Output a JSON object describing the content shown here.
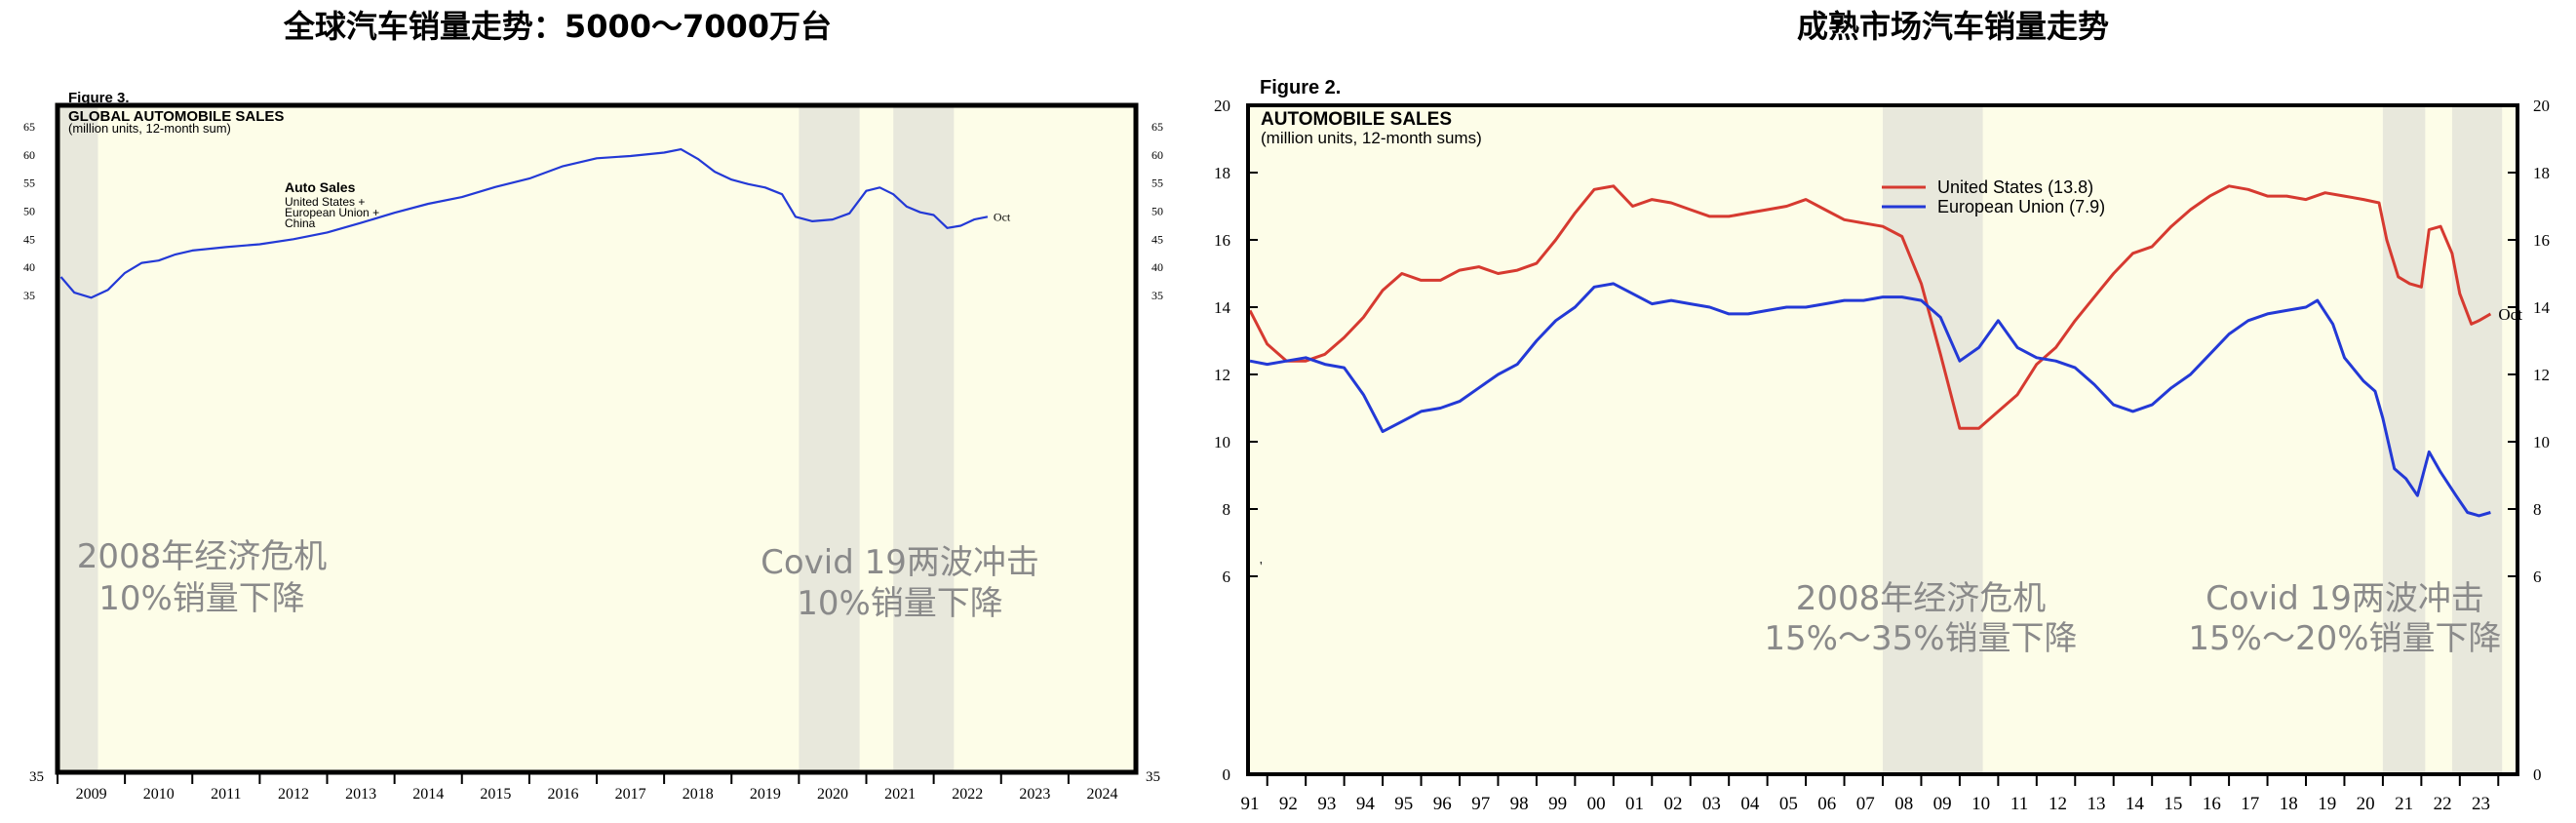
{
  "colors": {
    "plot_bg": "#fdfde8",
    "recession_band": "#e8e8dc",
    "blue": "#2339d6",
    "red": "#d63a30",
    "annotation": "#8a8a8a"
  },
  "chart_data": [
    {
      "type": "line",
      "title": "全球汽车销量走势：5000～7000万台",
      "figure_label": "Figure 3.",
      "panel_title": "GLOBAL AUTOMOBILE SALES",
      "panel_subtitle": "(million units, 12-month sum)",
      "legend_title": "Auto Sales",
      "legend_lines": [
        "United States +",
        "European Union +",
        "China"
      ],
      "ylim": [
        35,
        65
      ],
      "y_ticks_left": [
        "65",
        "60",
        "55",
        "50",
        "45",
        "40",
        "35"
      ],
      "y_ticks_right": [
        "65",
        "60",
        "55",
        "50",
        "45",
        "40",
        "35"
      ],
      "y_bottom_label_left": "35",
      "y_bottom_label_right": "35",
      "xlim": [
        2009,
        2025
      ],
      "x_tick_labels": [
        "2009",
        "2010",
        "2011",
        "2012",
        "2013",
        "2014",
        "2015",
        "2016",
        "2017",
        "2018",
        "2019",
        "2020",
        "2021",
        "2022",
        "2023",
        "2024"
      ],
      "shaded_periods": [
        [
          2009.0,
          2009.6
        ],
        [
          2020.0,
          2020.9
        ],
        [
          2021.4,
          2022.3
        ]
      ],
      "series": [
        {
          "name": "Auto Sales: United States + European Union + China",
          "end_label": "Oct",
          "x": [
            2009.05,
            2009.25,
            2009.5,
            2009.75,
            2010.0,
            2010.25,
            2010.5,
            2010.75,
            2011.0,
            2011.5,
            2012.0,
            2012.5,
            2013.0,
            2013.5,
            2014.0,
            2014.5,
            2015.0,
            2015.5,
            2016.0,
            2016.5,
            2017.0,
            2017.5,
            2018.0,
            2018.25,
            2018.5,
            2018.75,
            2019.0,
            2019.25,
            2019.5,
            2019.75,
            2019.95,
            2020.2,
            2020.5,
            2020.75,
            2021.0,
            2021.2,
            2021.4,
            2021.6,
            2021.8,
            2022.0,
            2022.2,
            2022.4,
            2022.6,
            2022.8
          ],
          "values": [
            38.3,
            35.5,
            34.6,
            36.0,
            39.0,
            40.8,
            41.2,
            42.3,
            43.0,
            43.6,
            44.1,
            45.0,
            46.2,
            47.9,
            49.7,
            51.3,
            52.5,
            54.3,
            55.8,
            58.0,
            59.4,
            59.8,
            60.4,
            61.0,
            59.3,
            57.0,
            55.6,
            54.8,
            54.2,
            53.0,
            49.0,
            48.2,
            48.5,
            49.6,
            53.6,
            54.2,
            53.0,
            50.8,
            49.8,
            49.3,
            47.0,
            47.4,
            48.5,
            49.0
          ]
        }
      ],
      "annotations": [
        {
          "lines": [
            "2008年经济危机",
            "10%销量下降"
          ]
        },
        {
          "lines": [
            "Covid 19两波冲击",
            "10%销量下降"
          ]
        }
      ]
    },
    {
      "type": "line",
      "title": "成熟市场汽车销量走势",
      "figure_label": "Figure 2.",
      "panel_title": "AUTOMOBILE SALES",
      "panel_subtitle": "(million units, 12-month sums)",
      "ylim": [
        0,
        20
      ],
      "y_ticks_left": [
        "20",
        "18",
        "16",
        "14",
        "12",
        "10",
        "8",
        "6",
        "0"
      ],
      "y_ticks_right": [
        "20",
        "18",
        "16",
        "14",
        "12",
        "10",
        "8",
        "6",
        "0"
      ],
      "xlim": [
        1990.5,
        2023.5
      ],
      "x_tick_labels": [
        "91",
        "92",
        "93",
        "94",
        "95",
        "96",
        "97",
        "98",
        "99",
        "00",
        "01",
        "02",
        "03",
        "04",
        "05",
        "06",
        "07",
        "08",
        "09",
        "10",
        "11",
        "12",
        "13",
        "14",
        "15",
        "16",
        "17",
        "18",
        "19",
        "20",
        "21",
        "22",
        "23"
      ],
      "stray_mark": "'",
      "shaded_periods": [
        [
          2007.0,
          2009.6
        ],
        [
          2020.0,
          2021.1
        ],
        [
          2021.8,
          2023.1
        ]
      ],
      "series": [
        {
          "name": "United States (13.8)",
          "end_label": "Oct",
          "x": [
            1990.55,
            1991.0,
            1991.5,
            1992.0,
            1992.5,
            1993.0,
            1993.5,
            1994.0,
            1994.5,
            1995.0,
            1995.5,
            1996.0,
            1996.5,
            1997.0,
            1997.5,
            1998.0,
            1998.5,
            1999.0,
            1999.5,
            2000.0,
            2000.5,
            2001.0,
            2001.5,
            2002.0,
            2002.5,
            2003.0,
            2003.5,
            2004.0,
            2004.5,
            2005.0,
            2005.5,
            2006.0,
            2006.5,
            2007.0,
            2007.5,
            2008.0,
            2008.5,
            2009.0,
            2009.5,
            2010.0,
            2010.5,
            2011.0,
            2011.5,
            2012.0,
            2012.5,
            2013.0,
            2013.5,
            2014.0,
            2014.5,
            2015.0,
            2015.5,
            2016.0,
            2016.5,
            2017.0,
            2017.5,
            2018.0,
            2018.5,
            2019.0,
            2019.5,
            2019.9,
            2020.1,
            2020.4,
            2020.7,
            2021.0,
            2021.2,
            2021.5,
            2021.8,
            2022.0,
            2022.3,
            2022.5,
            2022.8
          ],
          "values": [
            13.9,
            12.9,
            12.4,
            12.4,
            12.6,
            13.1,
            13.7,
            14.5,
            15.0,
            14.8,
            14.8,
            15.1,
            15.2,
            15.0,
            15.1,
            15.3,
            16.0,
            16.8,
            17.5,
            17.6,
            17.0,
            17.2,
            17.1,
            16.9,
            16.7,
            16.7,
            16.8,
            16.9,
            17.0,
            17.2,
            16.9,
            16.6,
            16.5,
            16.4,
            16.1,
            14.7,
            12.6,
            10.4,
            10.4,
            10.9,
            11.4,
            12.3,
            12.8,
            13.6,
            14.3,
            15.0,
            15.6,
            15.8,
            16.4,
            16.9,
            17.3,
            17.6,
            17.5,
            17.3,
            17.3,
            17.2,
            17.4,
            17.3,
            17.2,
            17.1,
            16.0,
            14.9,
            14.7,
            14.6,
            16.3,
            16.4,
            15.6,
            14.4,
            13.5,
            13.6,
            13.8
          ]
        },
        {
          "name": "European Union (7.9)",
          "end_label": "",
          "x": [
            1990.55,
            1991.0,
            1991.5,
            1992.0,
            1992.5,
            1993.0,
            1993.5,
            1994.0,
            1994.5,
            1995.0,
            1995.5,
            1996.0,
            1996.5,
            1997.0,
            1997.5,
            1998.0,
            1998.5,
            1999.0,
            1999.5,
            2000.0,
            2000.5,
            2001.0,
            2001.5,
            2002.0,
            2002.5,
            2003.0,
            2003.5,
            2004.0,
            2004.5,
            2005.0,
            2005.5,
            2006.0,
            2006.5,
            2007.0,
            2007.5,
            2008.0,
            2008.5,
            2009.0,
            2009.5,
            2010.0,
            2010.5,
            2011.0,
            2011.5,
            2012.0,
            2012.5,
            2013.0,
            2013.5,
            2014.0,
            2014.5,
            2015.0,
            2015.5,
            2016.0,
            2016.5,
            2017.0,
            2017.5,
            2018.0,
            2018.3,
            2018.7,
            2019.0,
            2019.5,
            2019.8,
            2020.0,
            2020.3,
            2020.6,
            2020.9,
            2021.2,
            2021.5,
            2021.9,
            2022.2,
            2022.5,
            2022.8
          ],
          "values": [
            12.4,
            12.3,
            12.4,
            12.5,
            12.3,
            12.2,
            11.4,
            10.3,
            10.6,
            10.9,
            11.0,
            11.2,
            11.6,
            12.0,
            12.3,
            13.0,
            13.6,
            14.0,
            14.6,
            14.7,
            14.4,
            14.1,
            14.2,
            14.1,
            14.0,
            13.8,
            13.8,
            13.9,
            14.0,
            14.0,
            14.1,
            14.2,
            14.2,
            14.3,
            14.3,
            14.2,
            13.7,
            12.4,
            12.8,
            13.6,
            12.8,
            12.5,
            12.4,
            12.2,
            11.7,
            11.1,
            10.9,
            11.1,
            11.6,
            12.0,
            12.6,
            13.2,
            13.6,
            13.8,
            13.9,
            14.0,
            14.2,
            13.5,
            12.5,
            11.8,
            11.5,
            10.7,
            9.2,
            8.9,
            8.4,
            9.7,
            9.1,
            8.4,
            7.9,
            7.8,
            7.9
          ]
        }
      ],
      "annotations": [
        {
          "lines": [
            "2008年经济危机",
            "15%～35%销量下降"
          ]
        },
        {
          "lines": [
            "Covid 19两波冲击",
            "15%～20%销量下降"
          ]
        }
      ]
    }
  ]
}
